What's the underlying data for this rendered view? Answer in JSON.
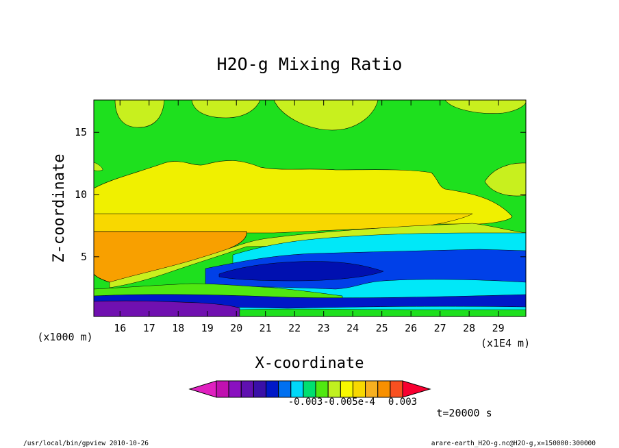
{
  "chart_data": {
    "type": "heatmap",
    "title": "H2O-g Mixing Ratio",
    "xlabel": "X-coordinate",
    "ylabel": "Z-coordinate",
    "x_units": "(x1E4 m)",
    "y_units": "(x1000 m)",
    "xlim": [
      15.1,
      29.95
    ],
    "ylim": [
      0.2,
      17.6
    ],
    "x_ticks": [
      "16",
      "17",
      "18",
      "19",
      "20",
      "21",
      "22",
      "23",
      "24",
      "25",
      "26",
      "27",
      "28",
      "29"
    ],
    "y_ticks": [
      "5",
      "10",
      "15"
    ],
    "colorbar": {
      "colors": [
        "#e020c0",
        "#c010b0",
        "#8a10c0",
        "#6010b0",
        "#3a10a8",
        "#0018c8",
        "#0070f0",
        "#00d8f8",
        "#00e070",
        "#50e810",
        "#c0f020",
        "#f8f800",
        "#f8d800",
        "#f8b020",
        "#f89000",
        "#f85020",
        "#f80030"
      ],
      "labels": [
        "-0.003",
        "-0.005e-4",
        "0.003"
      ]
    },
    "bands": [
      {
        "name": "level-green",
        "color": "#1ee01e",
        "z_bottom": 10.0,
        "z_top": 17.6
      },
      {
        "name": "level-light-yellow",
        "color": "#c8f01e",
        "z_bottom": 8.4,
        "z_top": 11.5
      },
      {
        "name": "level-yellow",
        "color": "#f0f000",
        "z_bottom": 6.9,
        "z_top": 8.4
      },
      {
        "name": "level-orange",
        "color": "#f8a000",
        "z_bottom": 3.0,
        "z_top": 6.9
      },
      {
        "name": "level-cyan",
        "color": "#00e8f8",
        "z_bottom": 4.5,
        "z_top": 6.8
      },
      {
        "name": "level-blue",
        "color": "#0040e8",
        "z_bottom": 2.2,
        "z_top": 5.5
      },
      {
        "name": "level-dark-blue",
        "color": "#0010b0",
        "z_bottom": 2.8,
        "z_top": 4.6
      },
      {
        "name": "level-purple",
        "color": "#7010b0",
        "z_bottom": 0.2,
        "z_top": 1.4
      }
    ],
    "time_label": "t=20000 s"
  },
  "footer": {
    "left": "/usr/local/bin/gpview  2010-10-26",
    "right": "arare-earth_H2O-g.nc@H2O-g,x=150000:300000"
  }
}
